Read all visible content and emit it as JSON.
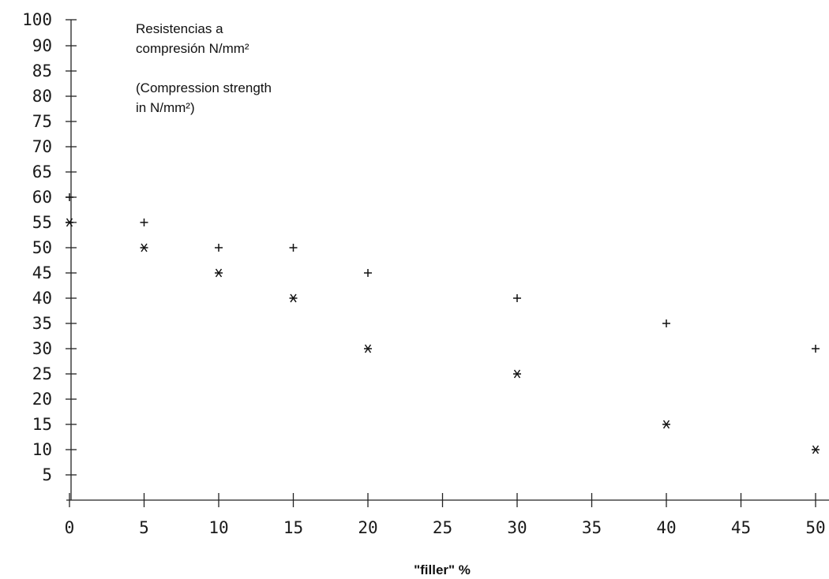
{
  "chart_data": {
    "type": "scatter",
    "title_lines": [
      "Resistencias a",
      "compresión N/mm²",
      "",
      "(Compression strength",
      "in N/mm²)"
    ],
    "xlabel": "\"filler\" %",
    "ylabel": "",
    "xlim": [
      0,
      50
    ],
    "ylim": [
      0,
      100
    ],
    "x_ticks": [
      "0",
      "5",
      "10",
      "15",
      "20",
      "25",
      "30",
      "35",
      "40",
      "45",
      "50"
    ],
    "y_ticks": [
      "5",
      "10",
      "15",
      "20",
      "25",
      "30",
      "35",
      "40",
      "45",
      "50",
      "55",
      "60",
      "65",
      "70",
      "75",
      "80",
      "85",
      "90",
      "100"
    ],
    "grid": false,
    "series": [
      {
        "marker": "plus",
        "x": [
          0,
          5,
          10,
          15,
          20,
          30,
          40,
          50
        ],
        "y": [
          60,
          55,
          50,
          50,
          45,
          40,
          35,
          30
        ]
      },
      {
        "marker": "asterisk",
        "x": [
          0,
          5,
          10,
          15,
          20,
          30,
          40,
          50
        ],
        "y": [
          55,
          50,
          45,
          40,
          30,
          25,
          15,
          10
        ]
      }
    ]
  }
}
